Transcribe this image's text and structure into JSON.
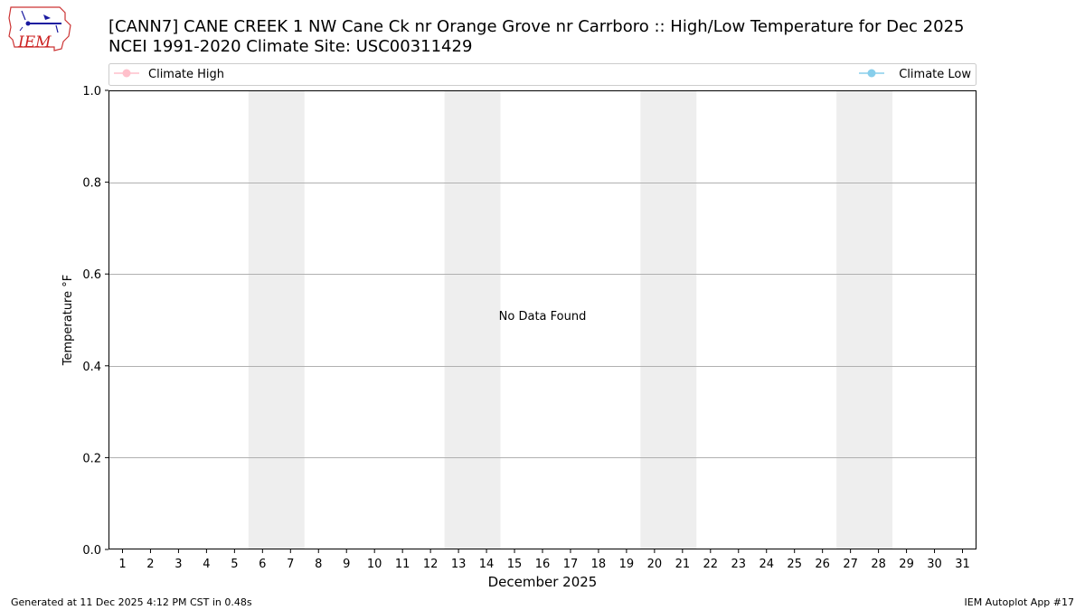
{
  "chart_data": {
    "type": "line",
    "title": "[CANN7] CANE CREEK 1 NW Cane Ck nr Orange Grove nr Carrboro :: High/Low Temperature for Dec 2025",
    "subtitle": "NCEI 1991-2020 Climate Site: USC00311429",
    "xlabel": "December 2025",
    "ylabel": "Temperature °F",
    "xlim": [
      0.5,
      31.5
    ],
    "ylim": [
      0,
      1
    ],
    "x_ticks": [
      1,
      2,
      3,
      4,
      5,
      6,
      7,
      8,
      9,
      10,
      11,
      12,
      13,
      14,
      15,
      16,
      17,
      18,
      19,
      20,
      21,
      22,
      23,
      24,
      25,
      26,
      27,
      28,
      29,
      30,
      31
    ],
    "y_ticks": [
      0.0,
      0.2,
      0.4,
      0.6,
      0.8,
      1.0
    ],
    "y_tick_labels": [
      "0.0",
      "0.2",
      "0.4",
      "0.6",
      "0.8",
      "1.0"
    ],
    "weekend_bands": [
      [
        6,
        7
      ],
      [
        13,
        14
      ],
      [
        20,
        21
      ],
      [
        27,
        28
      ]
    ],
    "band_color": "#eeeeee",
    "grid": "horizontal",
    "series": [
      {
        "name": "Climate High",
        "color": "#ffc0cb",
        "values": []
      },
      {
        "name": "Climate Low",
        "color": "#87ceeb",
        "values": []
      }
    ],
    "annotation": "No Data Found",
    "legend_placement": "top"
  },
  "footer": {
    "left": "Generated at 11 Dec 2025 4:12 PM CST in 0.48s",
    "right": "IEM Autoplot App #17"
  },
  "logo": {
    "text": "IEM"
  }
}
